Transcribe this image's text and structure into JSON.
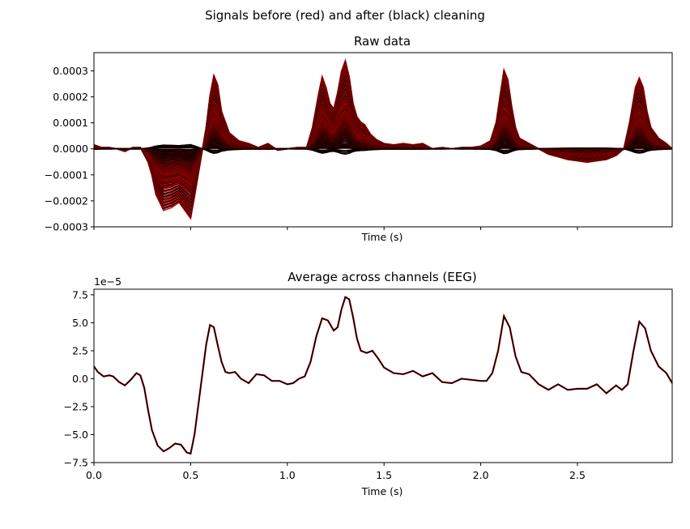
{
  "figure": {
    "suptitle": "Signals before (red) and after (black) cleaning"
  },
  "chart_data": [
    {
      "type": "line",
      "title": "Raw data",
      "xlabel": "Time (s)",
      "ylabel": "",
      "xlim": [
        0,
        2.99
      ],
      "ylim": [
        -0.0003,
        0.00037
      ],
      "yticks": [
        -0.0003,
        -0.0002,
        -0.0001,
        0.0,
        0.0001,
        0.0002,
        0.0003
      ],
      "ytick_labels": [
        "−0.0003",
        "−0.0002",
        "−0.0001",
        "0.0000",
        "0.0001",
        "0.0002",
        "0.0003"
      ],
      "xticks": [
        0,
        0.5,
        1.0,
        1.5,
        2.0,
        2.5
      ],
      "xtick_labels_visible": false,
      "colors": {
        "before": "#cc0000",
        "after": "#000000"
      },
      "template": {
        "x": [
          0.0,
          0.04,
          0.08,
          0.12,
          0.16,
          0.2,
          0.24,
          0.28,
          0.3,
          0.32,
          0.36,
          0.4,
          0.44,
          0.47,
          0.5,
          0.52,
          0.55,
          0.58,
          0.6,
          0.62,
          0.64,
          0.66,
          0.7,
          0.75,
          0.8,
          0.85,
          0.9,
          0.95,
          1.0,
          1.05,
          1.1,
          1.13,
          1.16,
          1.18,
          1.2,
          1.22,
          1.24,
          1.26,
          1.28,
          1.3,
          1.32,
          1.34,
          1.36,
          1.38,
          1.4,
          1.43,
          1.46,
          1.5,
          1.55,
          1.6,
          1.65,
          1.7,
          1.75,
          1.8,
          1.85,
          1.9,
          1.95,
          2.0,
          2.05,
          2.08,
          2.1,
          2.12,
          2.14,
          2.16,
          2.18,
          2.2,
          2.25,
          2.3,
          2.35,
          2.4,
          2.45,
          2.5,
          2.55,
          2.6,
          2.65,
          2.7,
          2.74,
          2.77,
          2.8,
          2.82,
          2.84,
          2.86,
          2.88,
          2.92,
          2.96,
          2.99
        ],
        "y": [
          0.15,
          0.05,
          0.05,
          0.0,
          -0.1,
          0.05,
          0.05,
          -0.5,
          -1.0,
          -1.7,
          -2.3,
          -2.2,
          -2.0,
          -2.3,
          -2.6,
          -1.8,
          -0.5,
          0.8,
          2.0,
          2.75,
          2.4,
          1.4,
          0.6,
          0.3,
          0.2,
          0.05,
          0.2,
          -0.05,
          0.0,
          0.05,
          0.05,
          0.8,
          2.0,
          2.7,
          2.3,
          1.7,
          1.5,
          2.1,
          2.9,
          3.3,
          2.7,
          1.7,
          1.2,
          1.0,
          0.9,
          0.55,
          0.35,
          0.2,
          0.15,
          0.2,
          0.15,
          0.2,
          0.0,
          0.05,
          0.0,
          0.05,
          0.05,
          0.1,
          0.3,
          1.0,
          2.0,
          2.95,
          2.6,
          1.6,
          0.8,
          0.4,
          0.2,
          0.0,
          -0.2,
          -0.3,
          -0.4,
          -0.45,
          -0.5,
          -0.45,
          -0.4,
          -0.25,
          0.0,
          1.0,
          2.3,
          2.65,
          2.3,
          1.4,
          0.8,
          0.4,
          0.2,
          0.0
        ]
      },
      "channel_scales": [
        1.0,
        0.95,
        0.9,
        0.85,
        0.8,
        0.75,
        0.7,
        0.65,
        0.62,
        0.58,
        0.55,
        0.52,
        0.5,
        0.47,
        0.44,
        0.42,
        0.4,
        0.38,
        0.36,
        0.34,
        0.32,
        0.3,
        0.28,
        0.26,
        0.24,
        0.22,
        0.2,
        0.18,
        0.16,
        0.14,
        0.12,
        0.1,
        0.08,
        0.06,
        0.05,
        0.04,
        0.03,
        0.02,
        0.01,
        -0.02,
        -0.04,
        -0.06
      ],
      "y_unit_scale": 0.0001
    },
    {
      "type": "line",
      "title": "Average across channels (EEG)",
      "xlabel": "Time (s)",
      "ylabel": "",
      "offset_text": "1e−5",
      "xlim": [
        0,
        2.99
      ],
      "ylim": [
        -7.5,
        8.0
      ],
      "xticks": [
        0,
        0.5,
        1.0,
        1.5,
        2.0,
        2.5
      ],
      "xtick_labels": [
        "0.0",
        "0.5",
        "1.0",
        "1.5",
        "2.0",
        "2.5"
      ],
      "yticks": [
        -7.5,
        -5.0,
        -2.5,
        0.0,
        2.5,
        5.0,
        7.5
      ],
      "ytick_labels": [
        "−7.5",
        "−5.0",
        "−2.5",
        "0.0",
        "2.5",
        "5.0",
        "7.5"
      ],
      "colors": {
        "before": "#cc0000",
        "after": "#000000"
      },
      "series": [
        {
          "x": [
            0.0,
            0.02,
            0.05,
            0.08,
            0.1,
            0.13,
            0.16,
            0.19,
            0.22,
            0.24,
            0.26,
            0.28,
            0.3,
            0.33,
            0.36,
            0.39,
            0.42,
            0.45,
            0.48,
            0.5,
            0.52,
            0.55,
            0.58,
            0.6,
            0.62,
            0.64,
            0.66,
            0.68,
            0.7,
            0.73,
            0.76,
            0.8,
            0.84,
            0.88,
            0.92,
            0.96,
            1.0,
            1.03,
            1.06,
            1.09,
            1.12,
            1.15,
            1.18,
            1.21,
            1.24,
            1.26,
            1.28,
            1.3,
            1.32,
            1.34,
            1.36,
            1.38,
            1.41,
            1.44,
            1.47,
            1.5,
            1.55,
            1.6,
            1.65,
            1.7,
            1.75,
            1.8,
            1.85,
            1.9,
            1.95,
            2.0,
            2.03,
            2.06,
            2.09,
            2.12,
            2.15,
            2.18,
            2.21,
            2.25,
            2.3,
            2.35,
            2.4,
            2.45,
            2.5,
            2.55,
            2.6,
            2.65,
            2.7,
            2.73,
            2.76,
            2.79,
            2.82,
            2.85,
            2.88,
            2.92,
            2.96,
            2.99
          ],
          "y": [
            1.1,
            0.6,
            0.2,
            0.3,
            0.2,
            -0.3,
            -0.6,
            -0.1,
            0.5,
            0.3,
            -0.8,
            -2.8,
            -4.6,
            -6.0,
            -6.5,
            -6.2,
            -5.8,
            -5.9,
            -6.6,
            -6.7,
            -5.0,
            -1.0,
            3.0,
            4.8,
            4.6,
            3.0,
            1.5,
            0.6,
            0.5,
            0.6,
            0.0,
            -0.4,
            0.4,
            0.3,
            -0.2,
            -0.2,
            -0.5,
            -0.4,
            0.0,
            0.2,
            1.5,
            3.8,
            5.4,
            5.2,
            4.3,
            4.6,
            6.2,
            7.3,
            7.1,
            5.5,
            3.6,
            2.5,
            2.3,
            2.5,
            1.8,
            1.0,
            0.5,
            0.4,
            0.7,
            0.2,
            0.5,
            -0.3,
            -0.4,
            0.0,
            -0.1,
            -0.2,
            -0.2,
            0.5,
            2.5,
            5.6,
            4.6,
            2.0,
            0.6,
            0.4,
            -0.5,
            -1.0,
            -0.5,
            -1.0,
            -0.9,
            -0.9,
            -0.5,
            -1.3,
            -0.6,
            -1.0,
            -0.5,
            2.5,
            5.1,
            4.5,
            2.5,
            1.1,
            0.5,
            -0.4
          ]
        }
      ]
    }
  ]
}
